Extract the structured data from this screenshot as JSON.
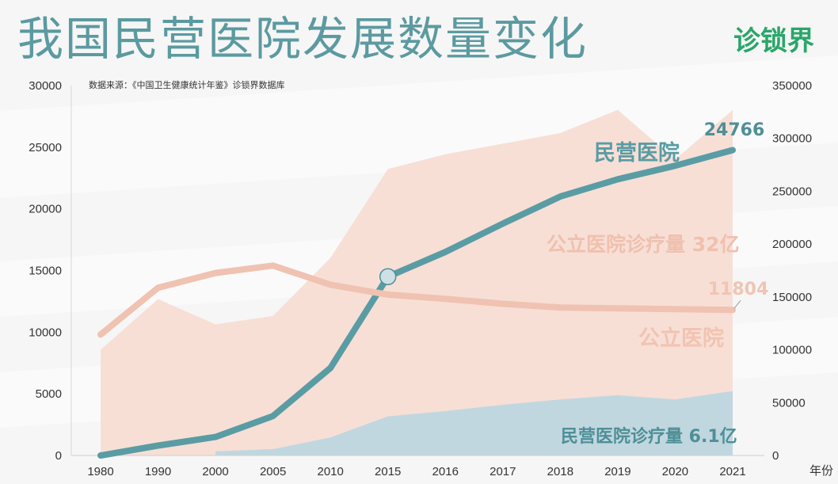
{
  "page": {
    "title": "我国民营医院发展数量变化",
    "logo": "诊锁界",
    "source": "数据来源：《中国卫生健康统计年鉴》诊锁界数据库"
  },
  "chart_data": {
    "type": "line",
    "categories": [
      "1980",
      "1990",
      "2000",
      "2005",
      "2010",
      "2015",
      "2016",
      "2017",
      "2018",
      "2019",
      "2020",
      "2021"
    ],
    "xlabel": "年份",
    "left_axis": {
      "ylim": [
        0,
        30000
      ],
      "ticks": [
        0,
        5000,
        10000,
        15000,
        20000,
        25000,
        30000
      ]
    },
    "right_axis": {
      "ylim": [
        0,
        350000
      ],
      "ticks": [
        0,
        50000,
        100000,
        150000,
        200000,
        250000,
        300000,
        350000
      ]
    },
    "colors": {
      "private_hospitals": "#5a9ca4",
      "public_hospitals": "#f0c2b1",
      "public_visits": "#f7ddd4",
      "private_visits": "#bdd6e0"
    },
    "series": [
      {
        "key": "private_hospitals",
        "name": "民营医院",
        "type": "line",
        "axis": "left",
        "values": [
          0,
          800,
          1500,
          3200,
          7100,
          14500,
          16500,
          18800,
          21000,
          22400,
          23500,
          24766
        ],
        "end_label": "24766"
      },
      {
        "key": "public_hospitals",
        "name": "公立医院",
        "type": "line",
        "axis": "left",
        "values": [
          9800,
          13600,
          14800,
          15400,
          13850,
          13050,
          12700,
          12300,
          12000,
          11930,
          11870,
          11804
        ],
        "end_label": "11804"
      },
      {
        "key": "public_visits",
        "name": "公立医院诊疗量 32亿",
        "type": "area",
        "axis": "right",
        "values": [
          100000,
          148000,
          124000,
          132000,
          187000,
          271000,
          285000,
          295000,
          305000,
          327000,
          280000,
          327000
        ]
      },
      {
        "key": "private_visits",
        "name": "民营医院诊疗量 6.1亿",
        "type": "area",
        "axis": "right",
        "values": [
          null,
          null,
          4000,
          6000,
          17000,
          37000,
          42000,
          48000,
          53000,
          57000,
          53000,
          61000
        ]
      }
    ],
    "annotations": [
      {
        "text": "24766",
        "series": "private_hospitals"
      },
      {
        "text": "11804",
        "series": "public_hospitals"
      },
      {
        "text": "民营医院",
        "series": "private_hospitals"
      },
      {
        "text": "公立医院",
        "series": "public_hospitals"
      },
      {
        "text": "公立医院诊疗量 32亿",
        "series": "public_visits"
      },
      {
        "text": "民营医院诊疗量 6.1亿",
        "series": "private_visits"
      }
    ],
    "highlight_point": {
      "series": "private_hospitals",
      "category": "2015"
    },
    "grid": false,
    "legend": "none"
  }
}
